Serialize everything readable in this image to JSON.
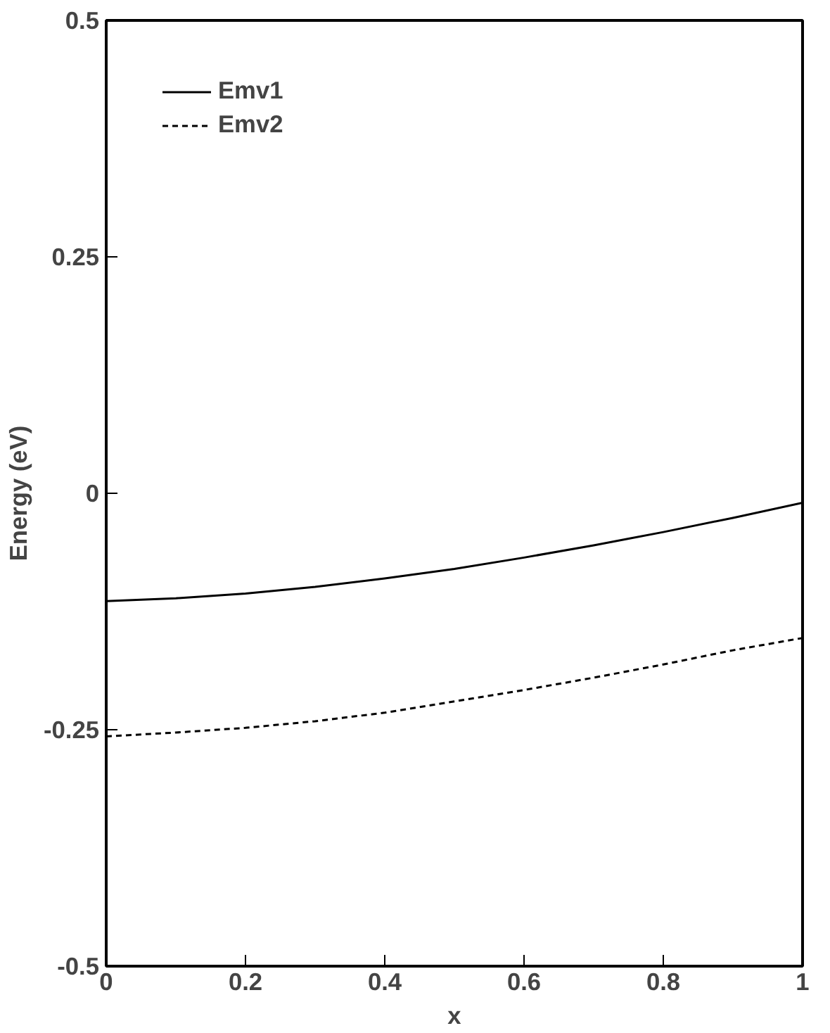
{
  "chart_data": {
    "type": "line",
    "xlabel": "x",
    "ylabel": "Energy (eV)",
    "x": [
      0,
      0.1,
      0.2,
      0.3,
      0.4,
      0.5,
      0.6,
      0.7,
      0.8,
      0.9,
      1.0
    ],
    "series": [
      {
        "name": "Emv1",
        "color": "#000000",
        "line_style": "solid",
        "values": [
          -0.114,
          -0.111,
          -0.106,
          -0.099,
          -0.09,
          -0.08,
          -0.068,
          -0.055,
          -0.041,
          -0.026,
          -0.01
        ]
      },
      {
        "name": "Emv2",
        "color": "#000000",
        "line_style": "dashed",
        "values": [
          -0.257,
          -0.253,
          -0.248,
          -0.241,
          -0.232,
          -0.22,
          -0.208,
          -0.195,
          -0.181,
          -0.166,
          -0.153
        ]
      }
    ],
    "xlim": [
      0,
      1
    ],
    "xticks": [
      0,
      0.2,
      0.4,
      0.6,
      0.8,
      1
    ],
    "ylim": [
      -0.5,
      0.5
    ],
    "yticks": [
      -0.5,
      -0.25,
      0,
      0.25,
      0.5
    ],
    "grid": false,
    "legend": "top left",
    "marker": "none"
  }
}
